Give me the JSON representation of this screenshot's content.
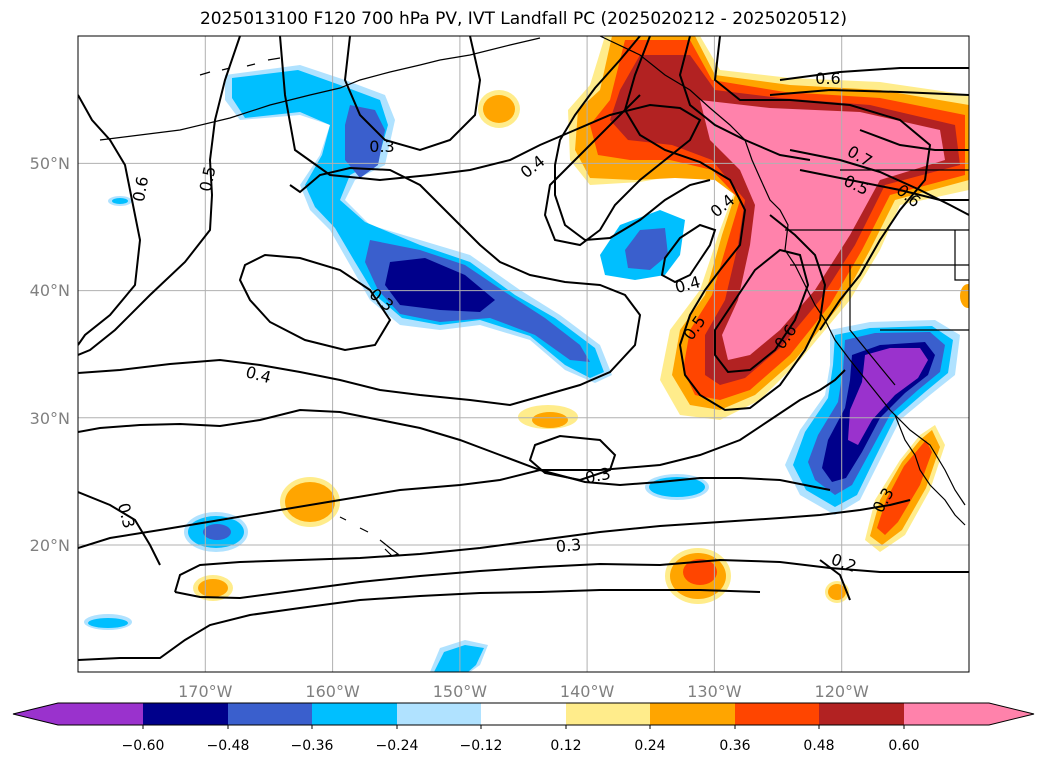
{
  "title": "2025013100 F120 700 hPa PV, IVT Landfall PC (2025020212 - 2025020512)",
  "map": {
    "lon_range": [
      -180,
      -110
    ],
    "lat_range": [
      10,
      60
    ],
    "lon_ticks": [
      {
        "value": -170,
        "label": "170°W"
      },
      {
        "value": -160,
        "label": "160°W"
      },
      {
        "value": -150,
        "label": "150°W"
      },
      {
        "value": -140,
        "label": "140°W"
      },
      {
        "value": -130,
        "label": "130°W"
      },
      {
        "value": -120,
        "label": "120°W"
      }
    ],
    "lat_ticks": [
      {
        "value": 20,
        "label": "20°N"
      },
      {
        "value": 30,
        "label": "30°N"
      },
      {
        "value": 40,
        "label": "40°N"
      },
      {
        "value": 50,
        "label": "50°N"
      }
    ],
    "grid": true
  },
  "contour_labels": [
    "0.3",
    "0.5",
    "0.6",
    "0.4",
    "0.3",
    "0.4",
    "0.4",
    "0.3",
    "0.3",
    "0.3",
    "0.4",
    "0.5",
    "0.6",
    "0.6",
    "0.7",
    "0.5",
    "0.6",
    "0.2",
    "0.3"
  ],
  "colorbar": {
    "colors": [
      "#9a32cd",
      "#00008b",
      "#3a5fcd",
      "#00bfff",
      "#b0e2ff",
      "#ffffff",
      "#ffec8b",
      "#ffa500",
      "#ff4500",
      "#b22222",
      "#ff82ab"
    ],
    "ticks": [
      "−0.60",
      "−0.48",
      "−0.36",
      "−0.24",
      "−0.12",
      "0.12",
      "0.24",
      "0.36",
      "0.48",
      "0.60"
    ],
    "extend": "both"
  }
}
